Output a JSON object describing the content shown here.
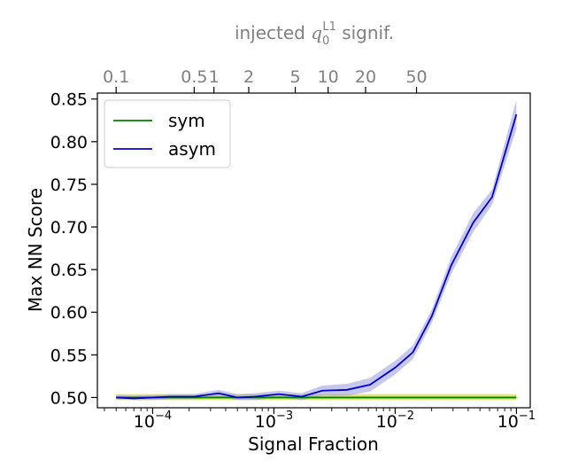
{
  "chart_data": {
    "type": "line",
    "xlabel": "Signal Fraction",
    "ylabel": "Max NN Score",
    "xscale": "log",
    "xlim": [
      3.5e-05,
      0.13
    ],
    "ylim": [
      0.488,
      0.857
    ],
    "grid": false,
    "legend_position": "top-left",
    "x_ticks": [
      {
        "value": 0.0001,
        "base": "10",
        "exp": "−4"
      },
      {
        "value": 0.001,
        "base": "10",
        "exp": "−3"
      },
      {
        "value": 0.01,
        "base": "10",
        "exp": "−2"
      },
      {
        "value": 0.1,
        "base": "10",
        "exp": "−1"
      }
    ],
    "y_ticks": [
      "0.50",
      "0.55",
      "0.60",
      "0.65",
      "0.70",
      "0.75",
      "0.80",
      "0.85"
    ],
    "top_axis": {
      "label_prefix": "injected ",
      "label_var": "q",
      "label_sub": "0",
      "label_sup": "L1",
      "label_suffix": " signif.",
      "ticks": [
        {
          "label": "0.1",
          "x": 5e-05
        },
        {
          "label": "0.5",
          "x": 0.00022
        },
        {
          "label": "1",
          "x": 0.00032
        },
        {
          "label": "2",
          "x": 0.00062
        },
        {
          "label": "5",
          "x": 0.0015
        },
        {
          "label": "10",
          "x": 0.0028
        },
        {
          "label": "20",
          "x": 0.0057
        },
        {
          "label": "50",
          "x": 0.015
        }
      ]
    },
    "series": [
      {
        "name": "sym",
        "color": "#008000",
        "band_color": "#c8d400",
        "x": [
          5e-05,
          0.1
        ],
        "y": [
          0.5,
          0.5
        ],
        "y_lower": [
          0.497,
          0.497
        ],
        "y_upper": [
          0.504,
          0.504
        ]
      },
      {
        "name": "asym",
        "color": "#0000cc",
        "band_color": "#9999e0",
        "x": [
          5e-05,
          7e-05,
          0.0001,
          0.00014,
          0.00022,
          0.00035,
          0.0005,
          0.0007,
          0.0011,
          0.0017,
          0.0025,
          0.004,
          0.0062,
          0.01,
          0.014,
          0.02,
          0.029,
          0.044,
          0.063,
          0.1
        ],
        "y": [
          0.5,
          0.499,
          0.5,
          0.501,
          0.501,
          0.505,
          0.5,
          0.501,
          0.504,
          0.501,
          0.508,
          0.509,
          0.515,
          0.535,
          0.553,
          0.595,
          0.655,
          0.705,
          0.735,
          0.832
        ],
        "y_lower": [
          0.498,
          0.497,
          0.497,
          0.498,
          0.498,
          0.501,
          0.497,
          0.497,
          0.5,
          0.497,
          0.502,
          0.502,
          0.507,
          0.527,
          0.545,
          0.587,
          0.645,
          0.694,
          0.726,
          0.815
        ],
        "y_upper": [
          0.503,
          0.502,
          0.503,
          0.504,
          0.504,
          0.509,
          0.504,
          0.505,
          0.508,
          0.505,
          0.514,
          0.516,
          0.523,
          0.543,
          0.561,
          0.603,
          0.665,
          0.716,
          0.744,
          0.849
        ]
      }
    ]
  }
}
